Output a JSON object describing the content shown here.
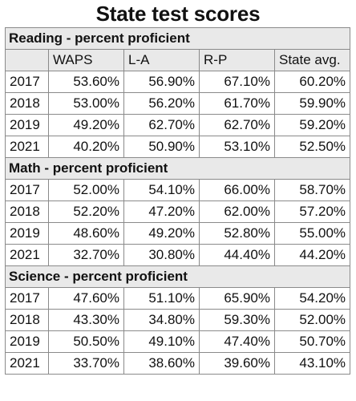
{
  "chart_data": {
    "type": "table",
    "title": "State test scores",
    "columns": [
      "WAPS",
      "L-A",
      "R-P",
      "State avg."
    ],
    "sections": [
      {
        "label": "Reading - percent proficient",
        "rows": [
          {
            "year": "2017",
            "values": [
              "53.60%",
              "56.90%",
              "67.10%",
              "60.20%"
            ]
          },
          {
            "year": "2018",
            "values": [
              "53.00%",
              "56.20%",
              "61.70%",
              "59.90%"
            ]
          },
          {
            "year": "2019",
            "values": [
              "49.20%",
              "62.70%",
              "62.70%",
              "59.20%"
            ]
          },
          {
            "year": "2021",
            "values": [
              "40.20%",
              "50.90%",
              "53.10%",
              "52.50%"
            ]
          }
        ]
      },
      {
        "label": "Math - percent proficient",
        "rows": [
          {
            "year": "2017",
            "values": [
              "52.00%",
              "54.10%",
              "66.00%",
              "58.70%"
            ]
          },
          {
            "year": "2018",
            "values": [
              "52.20%",
              "47.20%",
              "62.00%",
              "57.20%"
            ]
          },
          {
            "year": "2019",
            "values": [
              "48.60%",
              "49.20%",
              "52.80%",
              "55.00%"
            ]
          },
          {
            "year": "2021",
            "values": [
              "32.70%",
              "30.80%",
              "44.40%",
              "44.20%"
            ]
          }
        ]
      },
      {
        "label": "Science - percent proficient",
        "rows": [
          {
            "year": "2017",
            "values": [
              "47.60%",
              "51.10%",
              "65.90%",
              "54.20%"
            ]
          },
          {
            "year": "2018",
            "values": [
              "43.30%",
              "34.80%",
              "59.30%",
              "52.00%"
            ]
          },
          {
            "year": "2019",
            "values": [
              "50.50%",
              "49.10%",
              "47.40%",
              "50.70%"
            ]
          },
          {
            "year": "2021",
            "values": [
              "33.70%",
              "38.60%",
              "39.60%",
              "43.10%"
            ]
          }
        ]
      }
    ]
  }
}
